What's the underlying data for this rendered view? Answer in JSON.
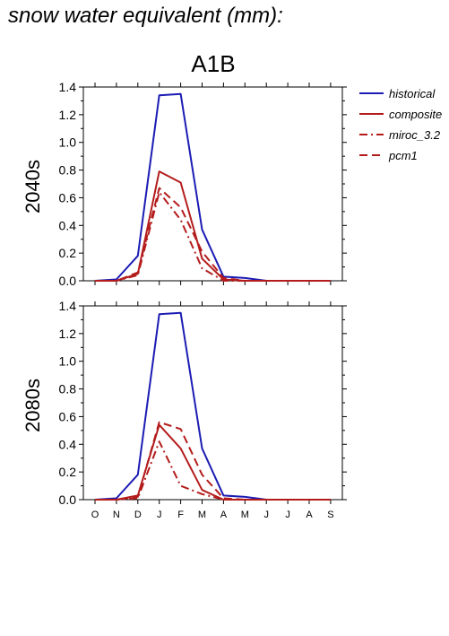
{
  "page": {
    "title": "snow water equivalent (mm):",
    "scenario": "A1B"
  },
  "chart_data": [
    {
      "type": "line",
      "row_label": "2040s",
      "x": [
        "O",
        "N",
        "D",
        "J",
        "F",
        "M",
        "A",
        "M",
        "J",
        "J",
        "A",
        "S"
      ],
      "ylim": [
        0,
        1.4
      ],
      "yticks": [
        "0.0",
        "0.2",
        "0.4",
        "0.6",
        "0.8",
        "1.0",
        "1.2",
        "1.4"
      ],
      "legend_position": "right, outside",
      "series": [
        {
          "name": "historical",
          "color": "#1c1cb4",
          "dash": "solid",
          "values": [
            0.0,
            0.01,
            0.18,
            1.34,
            1.35,
            0.37,
            0.03,
            0.02,
            0.0,
            0.0,
            0.0,
            0.0
          ]
        },
        {
          "name": "composite",
          "color": "#b41c1c",
          "dash": "solid",
          "values": [
            0.0,
            0.0,
            0.05,
            0.79,
            0.71,
            0.16,
            0.01,
            0.0,
            0.0,
            0.0,
            0.0,
            0.0
          ]
        },
        {
          "name": "miroc_3.2",
          "color": "#b41c1c",
          "dash": "dashdot",
          "values": [
            0.0,
            0.0,
            0.04,
            0.64,
            0.44,
            0.09,
            0.0,
            0.0,
            0.0,
            0.0,
            0.0,
            0.0
          ]
        },
        {
          "name": "pcm1",
          "color": "#b41c1c",
          "dash": "dashed",
          "values": [
            0.0,
            0.0,
            0.06,
            0.67,
            0.53,
            0.21,
            0.02,
            0.0,
            0.0,
            0.0,
            0.0,
            0.0
          ]
        }
      ]
    },
    {
      "type": "line",
      "row_label": "2080s",
      "x": [
        "O",
        "N",
        "D",
        "J",
        "F",
        "M",
        "A",
        "M",
        "J",
        "J",
        "A",
        "S"
      ],
      "ylim": [
        0,
        1.4
      ],
      "yticks": [
        "0.0",
        "0.2",
        "0.4",
        "0.6",
        "0.8",
        "1.0",
        "1.2",
        "1.4"
      ],
      "series": [
        {
          "name": "historical",
          "color": "#1c1cb4",
          "dash": "solid",
          "values": [
            0.0,
            0.01,
            0.18,
            1.34,
            1.35,
            0.37,
            0.03,
            0.02,
            0.0,
            0.0,
            0.0,
            0.0
          ]
        },
        {
          "name": "composite",
          "color": "#b41c1c",
          "dash": "solid",
          "values": [
            0.0,
            0.0,
            0.03,
            0.54,
            0.37,
            0.07,
            0.0,
            0.0,
            0.0,
            0.0,
            0.0,
            0.0
          ]
        },
        {
          "name": "miroc_3.2",
          "color": "#b41c1c",
          "dash": "dashdot",
          "values": [
            0.0,
            0.0,
            0.01,
            0.42,
            0.1,
            0.04,
            0.0,
            0.0,
            0.0,
            0.0,
            0.0,
            0.0
          ]
        },
        {
          "name": "pcm1",
          "color": "#b41c1c",
          "dash": "dashed",
          "values": [
            0.0,
            0.0,
            0.02,
            0.56,
            0.51,
            0.18,
            0.01,
            0.0,
            0.0,
            0.0,
            0.0,
            0.0
          ]
        }
      ]
    }
  ]
}
